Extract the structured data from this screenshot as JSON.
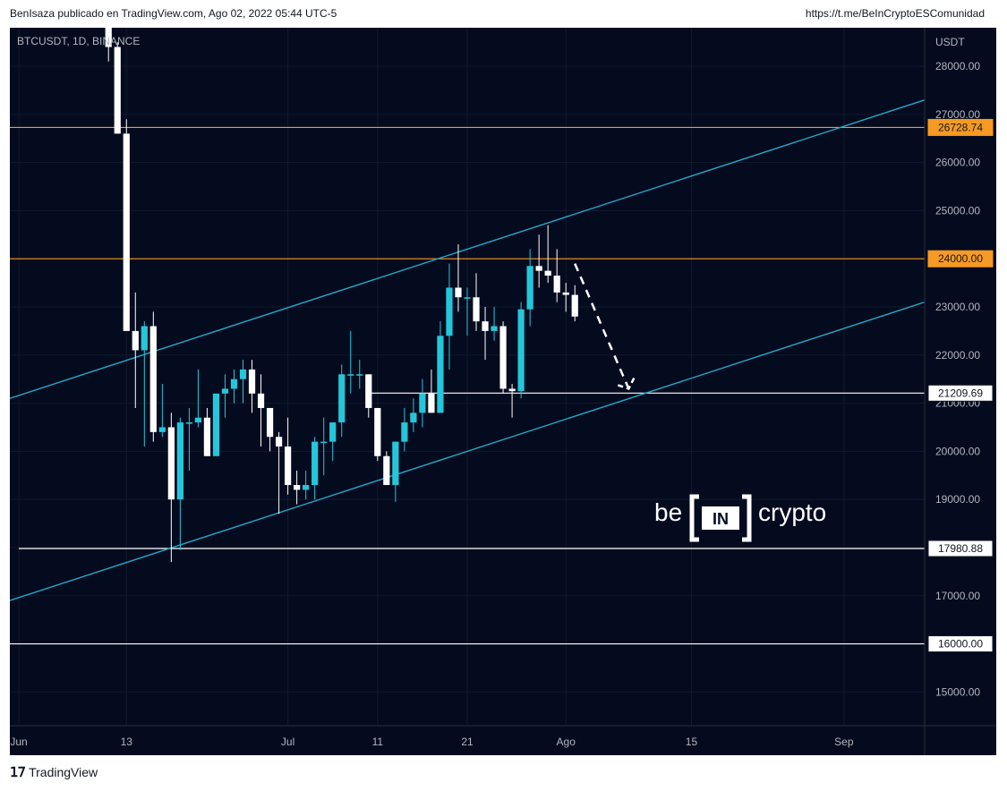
{
  "header": {
    "publisher": "BenIsaza publicado en TradingView.com, Ago 02, 2022 05:44 UTC-5",
    "link": "https://t.me/BeInCryptoESComunidad"
  },
  "footer": {
    "brand": "TradingView",
    "logo_icon": "tradingview-logo-icon"
  },
  "watermark": {
    "left": "be",
    "middle": "IN",
    "right": "crypto"
  },
  "colors": {
    "background": "#050b1f",
    "bull_candle": "#26c6da",
    "bear_candle": "#ffffff",
    "orange_line": "#f59a23",
    "channel_line": "#26a9c8",
    "white_line": "#ffffff",
    "axis_text": "#b2b5be"
  },
  "chart_data": {
    "type": "candlestick",
    "symbol": "BTCUSDT, 1D, BINANCE",
    "currency_label": "USDT",
    "x_ticks": [
      {
        "label": "Jun",
        "date": "2022-06-01"
      },
      {
        "label": "13",
        "date": "2022-06-13"
      },
      {
        "label": "Jul",
        "date": "2022-07-01"
      },
      {
        "label": "11",
        "date": "2022-07-11"
      },
      {
        "label": "21",
        "date": "2022-07-21"
      },
      {
        "label": "Ago",
        "date": "2022-08-01"
      },
      {
        "label": "15",
        "date": "2022-08-15"
      },
      {
        "label": "Sep",
        "date": "2022-09-01"
      }
    ],
    "y_ticks": [
      15000,
      16000,
      17000,
      18000,
      19000,
      20000,
      21000,
      22000,
      23000,
      24000,
      25000,
      26000,
      27000,
      28000
    ],
    "y_range": [
      14300,
      28800
    ],
    "x_range": [
      "2022-05-31",
      "2022-09-10"
    ],
    "candles": [
      {
        "date": "2022-06-11",
        "o": 29100,
        "h": 29400,
        "l": 28100,
        "c": 28400
      },
      {
        "date": "2022-06-12",
        "o": 28400,
        "h": 28500,
        "l": 26600,
        "c": 26600
      },
      {
        "date": "2022-06-13",
        "o": 26600,
        "h": 26900,
        "l": 22600,
        "c": 22500
      },
      {
        "date": "2022-06-14",
        "o": 22500,
        "h": 23300,
        "l": 20900,
        "c": 22100
      },
      {
        "date": "2022-06-15",
        "o": 22100,
        "h": 22700,
        "l": 20100,
        "c": 22600
      },
      {
        "date": "2022-06-16",
        "o": 22600,
        "h": 22900,
        "l": 20200,
        "c": 20400
      },
      {
        "date": "2022-06-17",
        "o": 20400,
        "h": 21400,
        "l": 20300,
        "c": 20500
      },
      {
        "date": "2022-06-18",
        "o": 20500,
        "h": 20800,
        "l": 17700,
        "c": 19000
      },
      {
        "date": "2022-06-19",
        "o": 19000,
        "h": 20700,
        "l": 17950,
        "c": 20600
      },
      {
        "date": "2022-06-20",
        "o": 20600,
        "h": 20900,
        "l": 19600,
        "c": 20600
      },
      {
        "date": "2022-06-21",
        "o": 20600,
        "h": 21700,
        "l": 20500,
        "c": 20700
      },
      {
        "date": "2022-06-22",
        "o": 20700,
        "h": 20900,
        "l": 19900,
        "c": 19900
      },
      {
        "date": "2022-06-23",
        "o": 19900,
        "h": 21200,
        "l": 19900,
        "c": 21200
      },
      {
        "date": "2022-06-24",
        "o": 21200,
        "h": 21600,
        "l": 20700,
        "c": 21300
      },
      {
        "date": "2022-06-25",
        "o": 21300,
        "h": 21700,
        "l": 21000,
        "c": 21500
      },
      {
        "date": "2022-06-26",
        "o": 21500,
        "h": 21900,
        "l": 21000,
        "c": 21700
      },
      {
        "date": "2022-06-27",
        "o": 21700,
        "h": 21900,
        "l": 20800,
        "c": 21200
      },
      {
        "date": "2022-06-28",
        "o": 21200,
        "h": 21600,
        "l": 20100,
        "c": 20900
      },
      {
        "date": "2022-06-29",
        "o": 20900,
        "h": 20900,
        "l": 20000,
        "c": 20300
      },
      {
        "date": "2022-06-30",
        "o": 20300,
        "h": 20400,
        "l": 18700,
        "c": 20100
      },
      {
        "date": "2022-07-01",
        "o": 20100,
        "h": 20700,
        "l": 19100,
        "c": 19300
      },
      {
        "date": "2022-07-02",
        "o": 19300,
        "h": 19600,
        "l": 18900,
        "c": 19200
      },
      {
        "date": "2022-07-03",
        "o": 19200,
        "h": 19600,
        "l": 19000,
        "c": 19300
      },
      {
        "date": "2022-07-04",
        "o": 19300,
        "h": 20300,
        "l": 19000,
        "c": 20200
      },
      {
        "date": "2022-07-05",
        "o": 20200,
        "h": 20700,
        "l": 19500,
        "c": 20200
      },
      {
        "date": "2022-07-06",
        "o": 20200,
        "h": 20600,
        "l": 19800,
        "c": 20600
      },
      {
        "date": "2022-07-07",
        "o": 20600,
        "h": 21800,
        "l": 20300,
        "c": 21600
      },
      {
        "date": "2022-07-08",
        "o": 21600,
        "h": 22500,
        "l": 21200,
        "c": 21600
      },
      {
        "date": "2022-07-09",
        "o": 21600,
        "h": 21900,
        "l": 21300,
        "c": 21600
      },
      {
        "date": "2022-07-10",
        "o": 21600,
        "h": 21600,
        "l": 20700,
        "c": 20900
      },
      {
        "date": "2022-07-11",
        "o": 20900,
        "h": 20900,
        "l": 19800,
        "c": 19900
      },
      {
        "date": "2022-07-12",
        "o": 19900,
        "h": 20000,
        "l": 19300,
        "c": 19300
      },
      {
        "date": "2022-07-13",
        "o": 19300,
        "h": 20200,
        "l": 18950,
        "c": 20200
      },
      {
        "date": "2022-07-14",
        "o": 20200,
        "h": 20900,
        "l": 20000,
        "c": 20600
      },
      {
        "date": "2022-07-15",
        "o": 20600,
        "h": 21100,
        "l": 20400,
        "c": 20800
      },
      {
        "date": "2022-07-16",
        "o": 20800,
        "h": 21500,
        "l": 20500,
        "c": 21200
      },
      {
        "date": "2022-07-17",
        "o": 21200,
        "h": 21700,
        "l": 20800,
        "c": 20800
      },
      {
        "date": "2022-07-18",
        "o": 20800,
        "h": 22700,
        "l": 20800,
        "c": 22400
      },
      {
        "date": "2022-07-19",
        "o": 22400,
        "h": 23900,
        "l": 21700,
        "c": 23400
      },
      {
        "date": "2022-07-20",
        "o": 23400,
        "h": 24300,
        "l": 22900,
        "c": 23200
      },
      {
        "date": "2022-07-21",
        "o": 23200,
        "h": 23400,
        "l": 22400,
        "c": 23200
      },
      {
        "date": "2022-07-22",
        "o": 23200,
        "h": 23700,
        "l": 22500,
        "c": 22700
      },
      {
        "date": "2022-07-23",
        "o": 22700,
        "h": 23000,
        "l": 21900,
        "c": 22500
      },
      {
        "date": "2022-07-24",
        "o": 22500,
        "h": 23000,
        "l": 22300,
        "c": 22600
      },
      {
        "date": "2022-07-25",
        "o": 22600,
        "h": 22700,
        "l": 21200,
        "c": 21300
      },
      {
        "date": "2022-07-26",
        "o": 21300,
        "h": 21400,
        "l": 20700,
        "c": 21250
      },
      {
        "date": "2022-07-27",
        "o": 21250,
        "h": 23100,
        "l": 21100,
        "c": 22950
      },
      {
        "date": "2022-07-28",
        "o": 22950,
        "h": 24200,
        "l": 22600,
        "c": 23850
      },
      {
        "date": "2022-07-29",
        "o": 23850,
        "h": 24500,
        "l": 23400,
        "c": 23750
      },
      {
        "date": "2022-07-30",
        "o": 23750,
        "h": 24700,
        "l": 23500,
        "c": 23650
      },
      {
        "date": "2022-07-31",
        "o": 23650,
        "h": 24200,
        "l": 23100,
        "c": 23300
      },
      {
        "date": "2022-08-01",
        "o": 23300,
        "h": 23500,
        "l": 22900,
        "c": 23250
      },
      {
        "date": "2022-08-02",
        "o": 23250,
        "h": 23450,
        "l": 22700,
        "c": 22800
      }
    ],
    "horizontal_lines": [
      {
        "name": "orange-resistance-upper",
        "price": 26728.74,
        "label": "26728.74",
        "color": "orange",
        "from": "2022-05-31"
      },
      {
        "name": "orange-resistance-lower",
        "price": 24000.0,
        "label": "24000.00",
        "color": "orange",
        "from": "2022-05-31"
      },
      {
        "name": "white-support-mid",
        "price": 21209.69,
        "label": "21209.69",
        "color": "white",
        "from": "2022-07-10"
      },
      {
        "name": "white-support-low",
        "price": 17980.88,
        "label": "17980.88",
        "color": "white",
        "from": "2022-06-01"
      },
      {
        "name": "white-support-bottom",
        "price": 16000.0,
        "label": "16000.00",
        "color": "white",
        "from": "2022-05-31"
      }
    ],
    "channel_lines": [
      {
        "name": "channel-upper",
        "start": {
          "date": "2022-05-31",
          "price": 21100
        },
        "end": {
          "date": "2022-09-10",
          "price": 27300
        }
      },
      {
        "name": "channel-lower",
        "start": {
          "date": "2022-05-31",
          "price": 16900
        },
        "end": {
          "date": "2022-09-10",
          "price": 23100
        }
      }
    ],
    "projection": {
      "name": "dashed-projection-arrow",
      "start": {
        "date": "2022-08-02",
        "price": 23900
      },
      "end": {
        "date": "2022-08-08",
        "price": 21300
      }
    }
  }
}
